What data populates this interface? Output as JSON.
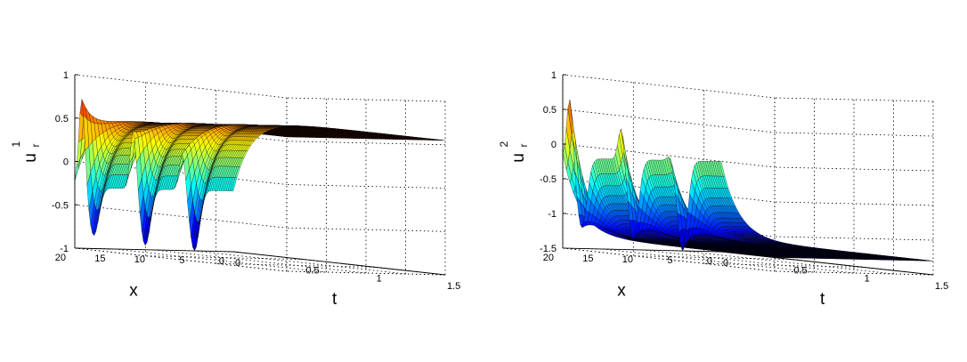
{
  "chart_data": [
    {
      "type": "surface",
      "zlabel": {
        "main": "u",
        "sup": "1",
        "sub": "r"
      },
      "xlabel": "x",
      "tlabel": "t",
      "zlim": [
        -1,
        1
      ],
      "xlim": [
        0,
        20
      ],
      "tlim": [
        0,
        1.5
      ],
      "zticks": [
        "-1",
        "-0.5",
        "0",
        "0.5",
        "1"
      ],
      "xticks": [
        "0",
        "5",
        "10",
        "15",
        "20"
      ],
      "tticks": [
        "0",
        "0.5",
        "1",
        "1.5"
      ],
      "grid": true,
      "colormap": "jet",
      "steady_value": 0.55,
      "front_value": -0.3,
      "peaks": [
        {
          "x": 18.5,
          "min": -0.85,
          "max": 0.75
        },
        {
          "x": 12.0,
          "min": -0.95,
          "max": 0.4
        },
        {
          "x": 5.8,
          "min": -1.0,
          "max": 0.15
        }
      ]
    },
    {
      "type": "surface",
      "zlabel": {
        "main": "u",
        "sup": "2",
        "sub": "r"
      },
      "xlabel": "x",
      "tlabel": "t",
      "zlim": [
        -1.5,
        1
      ],
      "xlim": [
        0,
        20
      ],
      "tlim": [
        0,
        1.5
      ],
      "zticks": [
        "-1.5",
        "-1",
        "-0.5",
        "0",
        "0.5",
        "1"
      ],
      "xticks": [
        "0",
        "5",
        "10",
        "15",
        "20"
      ],
      "tticks": [
        "0",
        "0.5",
        "1",
        "1.5"
      ],
      "grid": true,
      "colormap": "jet",
      "steady_value": -1.3,
      "front_value": -0.2,
      "peaks": [
        {
          "x": 18.5,
          "min": -1.2,
          "max": 0.7
        },
        {
          "x": 12.0,
          "min": -1.35,
          "max": 0.3
        },
        {
          "x": 5.8,
          "min": -1.5,
          "max": -0.1
        }
      ]
    }
  ]
}
